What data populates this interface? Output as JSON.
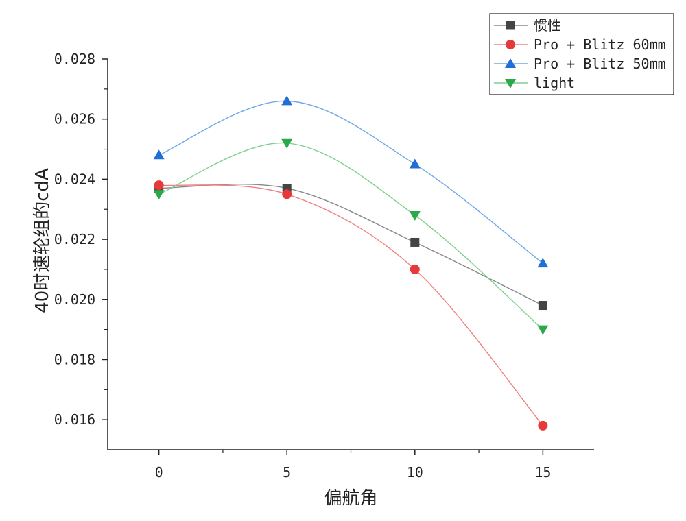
{
  "chart_data": {
    "type": "line",
    "x": [
      0,
      5,
      10,
      15
    ],
    "series": [
      {
        "name": "惯性",
        "values": [
          0.0237,
          0.0237,
          0.0219,
          0.0198
        ],
        "color": "#444444",
        "marker": "square",
        "line_color": "#888888"
      },
      {
        "name": "Pro + Blitz 60mm",
        "values": [
          0.0238,
          0.0235,
          0.021,
          0.0158
        ],
        "color": "#e8393a",
        "marker": "circle",
        "line_color": "#f08080"
      },
      {
        "name": "Pro + Blitz 50mm",
        "values": [
          0.0248,
          0.0266,
          0.0245,
          0.0212
        ],
        "color": "#1f6fd6",
        "marker": "triangle-up",
        "line_color": "#6fa8e8"
      },
      {
        "name": "light",
        "values": [
          0.0235,
          0.0252,
          0.0228,
          0.019
        ],
        "color": "#2aa84a",
        "marker": "triangle-down",
        "line_color": "#7fd08f"
      }
    ],
    "xlabel": "偏航角",
    "ylabel": "40时速轮组的cdA",
    "xlim": [
      -2,
      17
    ],
    "ylim": [
      0.015,
      0.028
    ],
    "xticks": [
      0,
      5,
      10,
      15
    ],
    "xtick_labels": [
      "0",
      "5",
      "10",
      "15"
    ],
    "yticks": [
      0.016,
      0.018,
      0.02,
      0.022,
      0.024,
      0.026,
      0.028
    ],
    "ytick_labels": [
      "0.016",
      "0.018",
      "0.020",
      "0.022",
      "0.024",
      "0.026",
      "0.028"
    ],
    "grid": false,
    "legend": "top-right",
    "smooth": true
  }
}
